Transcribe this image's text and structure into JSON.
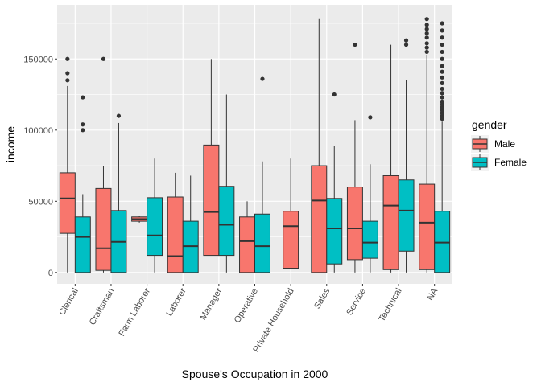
{
  "chart_data": {
    "type": "boxplot",
    "xlabel": "Spouse's Occupation in 2000",
    "ylabel": "income",
    "ylim": [
      -8000,
      188000
    ],
    "yticks": [
      0,
      50000,
      100000,
      150000
    ],
    "ytick_labels": [
      "0",
      "50000",
      "100000",
      "150000"
    ],
    "grid": true,
    "legend": {
      "title": "gender",
      "position": "right",
      "entries": [
        {
          "name": "Male",
          "color": "#F8766D"
        },
        {
          "name": "Female",
          "color": "#00BFC4"
        }
      ]
    },
    "categories": [
      "Clerical",
      "Craftsman",
      "Farm Laborer",
      "Laborer",
      "Manager",
      "Operative",
      "Private Household",
      "Sales",
      "Service",
      "Technical",
      "NA"
    ],
    "series": [
      {
        "name": "Male",
        "color": "#F8766D",
        "boxes": [
          {
            "category": "Clerical",
            "whisker_low": 0,
            "q1": 27500,
            "median": 52000,
            "q3": 70000,
            "whisker_high": 131000,
            "outliers": [
              140000,
              135000,
              150000
            ]
          },
          {
            "category": "Craftsman",
            "whisker_low": 0,
            "q1": 1500,
            "median": 17000,
            "q3": 59000,
            "whisker_high": 75000,
            "outliers": [
              150000
            ]
          },
          {
            "category": "Farm Laborer",
            "whisker_low": 35000,
            "q1": 36000,
            "median": 37500,
            "q3": 39000,
            "whisker_high": 40000,
            "outliers": []
          },
          {
            "category": "Laborer",
            "whisker_low": 0,
            "q1": 0,
            "median": 11500,
            "q3": 53000,
            "whisker_high": 70000,
            "outliers": []
          },
          {
            "category": "Manager",
            "whisker_low": 12000,
            "q1": 12000,
            "median": 42500,
            "q3": 89500,
            "whisker_high": 150000,
            "outliers": []
          },
          {
            "category": "Operative",
            "whisker_low": 0,
            "q1": 0,
            "median": 22000,
            "q3": 39000,
            "whisker_high": 50000,
            "outliers": []
          },
          {
            "category": "Private Household",
            "whisker_low": 3000,
            "q1": 3000,
            "median": 32500,
            "q3": 43000,
            "whisker_high": 80000,
            "outliers": []
          },
          {
            "category": "Sales",
            "whisker_low": 0,
            "q1": 0,
            "median": 50500,
            "q3": 75000,
            "whisker_high": 178000,
            "outliers": []
          },
          {
            "category": "Service",
            "whisker_low": 0,
            "q1": 9000,
            "median": 31000,
            "q3": 60000,
            "whisker_high": 107000,
            "outliers": [
              160000
            ]
          },
          {
            "category": "Technical",
            "whisker_low": 0,
            "q1": 2000,
            "median": 47000,
            "q3": 68000,
            "whisker_high": 160000,
            "outliers": []
          },
          {
            "category": "NA",
            "whisker_low": 0,
            "q1": 2000,
            "median": 35000,
            "q3": 62000,
            "whisker_high": 153000,
            "outliers": [
              155000,
              158000,
              161000,
              165000,
              168000,
              171000,
              174000,
              178000
            ]
          }
        ]
      },
      {
        "name": "Female",
        "color": "#00BFC4",
        "boxes": [
          {
            "category": "Clerical",
            "whisker_low": 0,
            "q1": 0,
            "median": 25000,
            "q3": 39000,
            "whisker_high": 55000,
            "outliers": [
              123000,
              104000,
              100000
            ]
          },
          {
            "category": "Craftsman",
            "whisker_low": 0,
            "q1": 0,
            "median": 21500,
            "q3": 43500,
            "whisker_high": 105000,
            "outliers": [
              110000
            ]
          },
          {
            "category": "Farm Laborer",
            "whisker_low": 0,
            "q1": 12000,
            "median": 26000,
            "q3": 52500,
            "whisker_high": 80000,
            "outliers": []
          },
          {
            "category": "Laborer",
            "whisker_low": 0,
            "q1": 0,
            "median": 18500,
            "q3": 36000,
            "whisker_high": 68000,
            "outliers": []
          },
          {
            "category": "Manager",
            "whisker_low": 0,
            "q1": 12000,
            "median": 33500,
            "q3": 60500,
            "whisker_high": 125000,
            "outliers": []
          },
          {
            "category": "Operative",
            "whisker_low": 0,
            "q1": 0,
            "median": 18500,
            "q3": 41000,
            "whisker_high": 78000,
            "outliers": [
              136000
            ]
          },
          {
            "category": "Sales",
            "whisker_low": 0,
            "q1": 6000,
            "median": 31000,
            "q3": 52000,
            "whisker_high": 89000,
            "outliers": [
              125000
            ]
          },
          {
            "category": "Service",
            "whisker_low": 0,
            "q1": 10000,
            "median": 21000,
            "q3": 36000,
            "whisker_high": 76000,
            "outliers": [
              109000
            ]
          },
          {
            "category": "Technical",
            "whisker_low": 0,
            "q1": 15000,
            "median": 43500,
            "q3": 65000,
            "whisker_high": 135000,
            "outliers": [
              160000,
              163000
            ]
          },
          {
            "category": "NA",
            "whisker_low": 0,
            "q1": 0,
            "median": 21000,
            "q3": 43000,
            "whisker_high": 106000,
            "outliers": [
              108000,
              110000,
              112000,
              114000,
              116000,
              118000,
              120000,
              123000,
              126000,
              129000,
              133000,
              137000,
              141000,
              145000,
              150000,
              155000,
              160000,
              165000,
              170000,
              175000
            ]
          }
        ]
      }
    ]
  }
}
